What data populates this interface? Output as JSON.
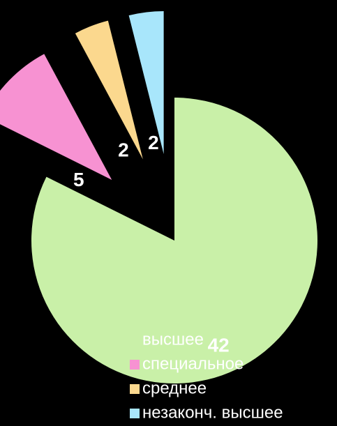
{
  "chart_data": {
    "type": "pie",
    "categories": [
      "высшее",
      "специальное",
      "среднее",
      "незаконч. высшее"
    ],
    "values": [
      42,
      5,
      2,
      2
    ],
    "colors": [
      "#c9f0a8",
      "#f792d2",
      "#fbd88e",
      "#a8e6fb"
    ],
    "legend": "bottom"
  }
}
